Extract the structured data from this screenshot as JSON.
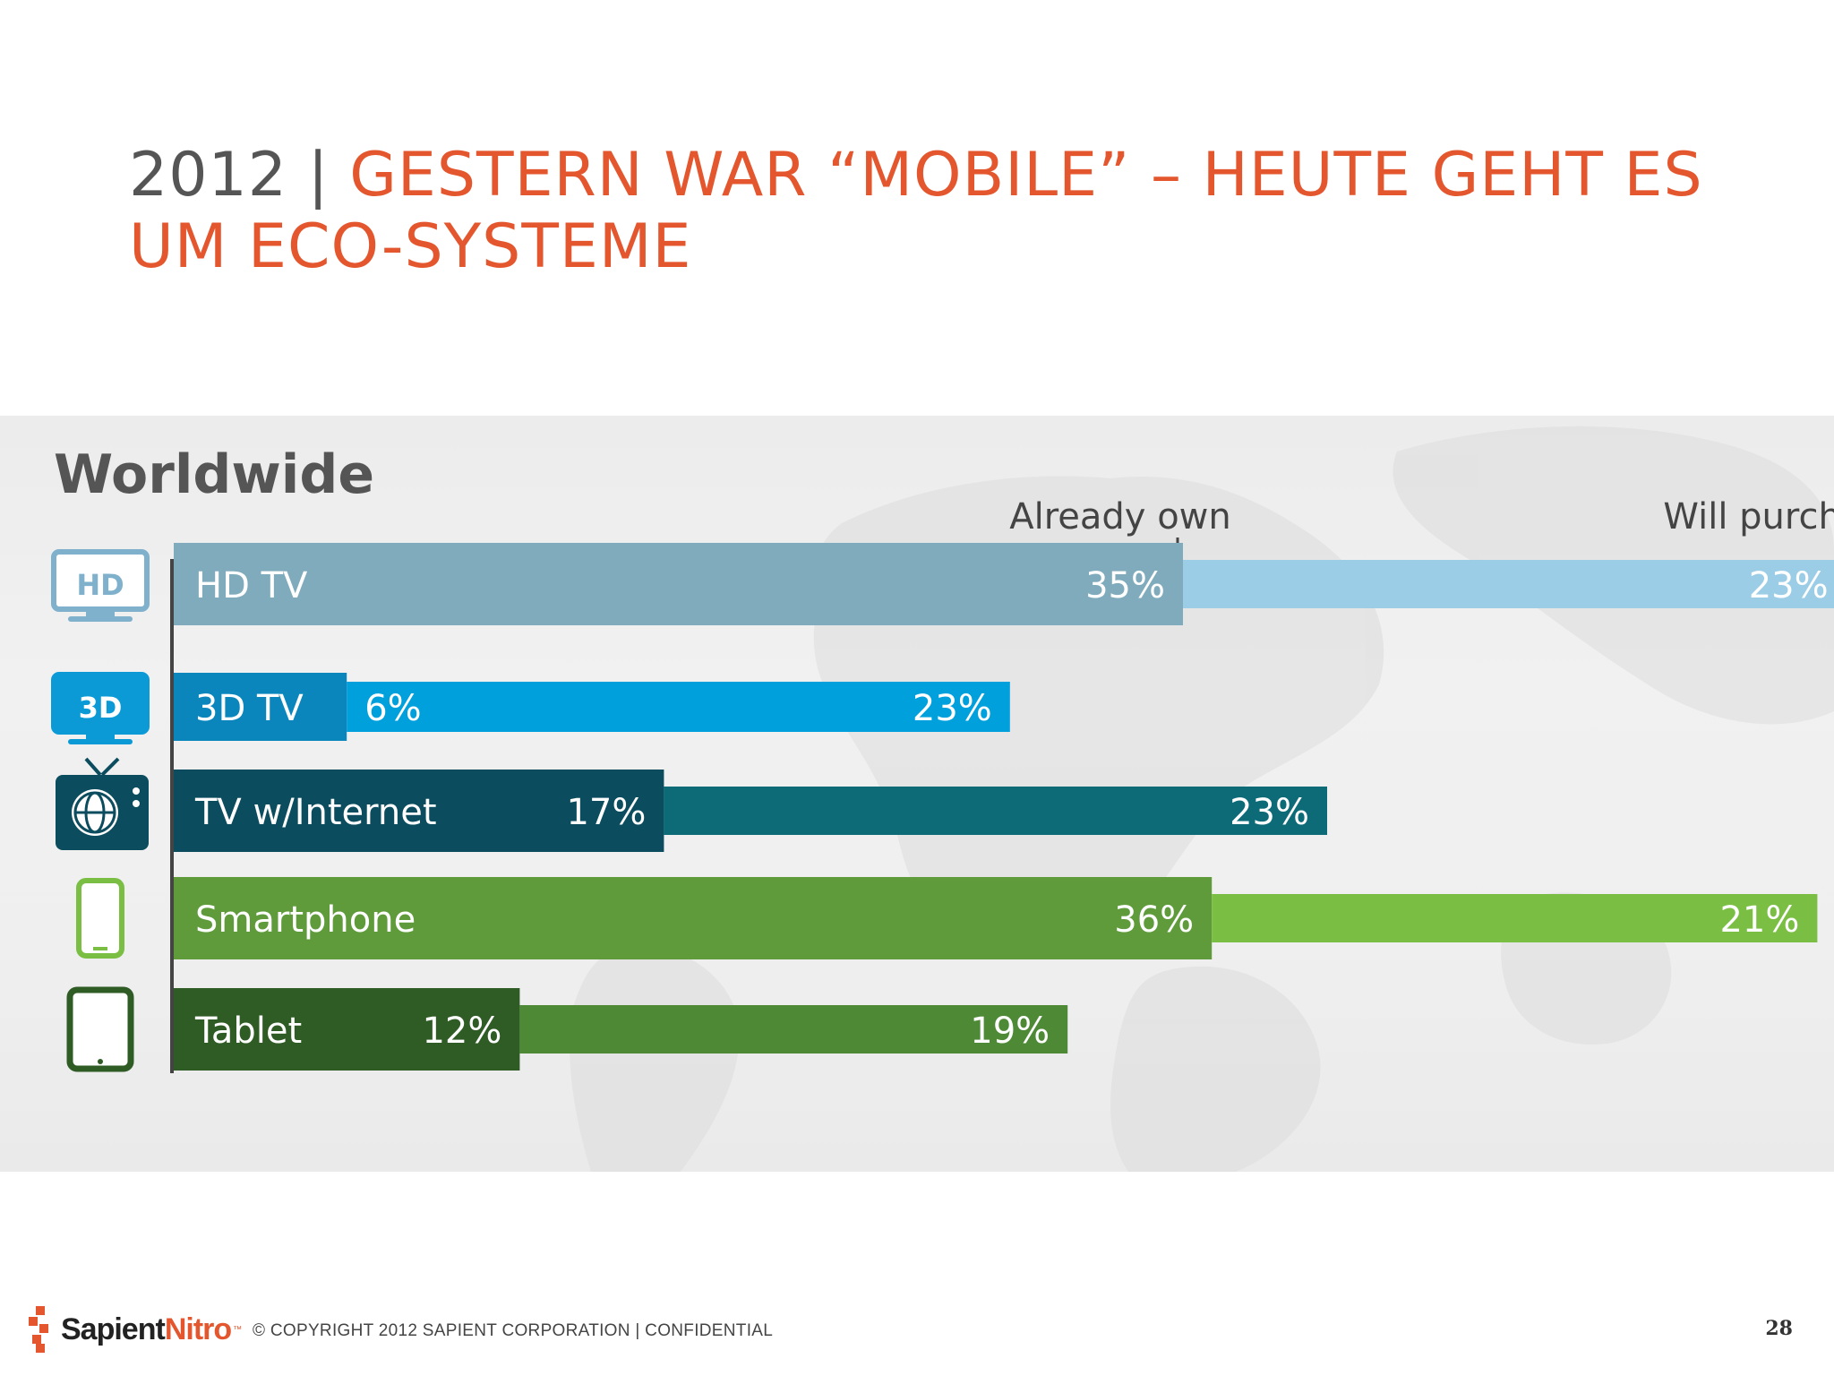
{
  "title": {
    "year": "2012",
    "separator": " | ",
    "main": "GESTERN WAR “MOBILE” – HEUTE GEHT ES UM ECO-SYSTEME"
  },
  "colors": {
    "title_accent": "#e4572e",
    "title_year": "#555555"
  },
  "chart_data": {
    "type": "bar",
    "stacked": true,
    "orientation": "horizontal",
    "title": "Worldwide",
    "categories": [
      "HD TV",
      "3D TV",
      "TV w/Internet",
      "Smartphone",
      "Tablet"
    ],
    "series": [
      {
        "name": "Already own",
        "values": [
          35,
          6,
          17,
          36,
          12
        ]
      },
      {
        "name": "Will purchase",
        "values": [
          23,
          23,
          23,
          21,
          19
        ]
      }
    ],
    "value_labels": {
      "Already own": [
        "35%",
        "6%",
        "17%",
        "36%",
        "12%"
      ],
      "Will purchase": [
        "23%",
        "23%",
        "23%",
        "21%",
        "19%"
      ]
    },
    "icons": [
      "hd-tv-icon",
      "3d-tv-icon",
      "internet-tv-icon",
      "smartphone-icon",
      "tablet-icon"
    ],
    "icon_labels": [
      "HD",
      "3D",
      "",
      "",
      ""
    ],
    "colors": {
      "own": [
        "#7fabbc",
        "#0b86bd",
        "#0b4c5e",
        "#5f9b3b",
        "#2f5b24"
      ],
      "purchase": [
        "#9ccde6",
        "#00a0dc",
        "#0d6b78",
        "#7abf43",
        "#4e8a36"
      ],
      "icons": [
        "#7fb0cc",
        "#0b9ad6",
        "#0b4c5e",
        "#7abf43",
        "#2f5b24"
      ]
    },
    "xlim": [
      0,
      60
    ],
    "grid": false,
    "legend": "top-inline"
  },
  "footer": {
    "brand_part1": "Sapient",
    "brand_part2": "Nitro",
    "brand_tm": "™",
    "copyright": "© COPYRIGHT 2012 SAPIENT CORPORATION  |  CONFIDENTIAL",
    "page": "28"
  }
}
